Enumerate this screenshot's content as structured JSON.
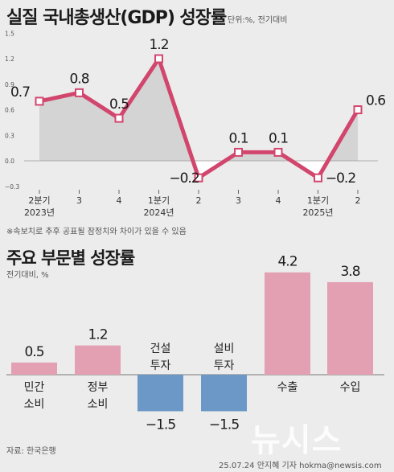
{
  "header": {
    "title": "실질 국내총생산(GDP) 성장률",
    "unit_note": "단위:%, 전기대비"
  },
  "note": "※속보치로 추후 공표될 잠정치와 차이가 있을 수 있음",
  "section2": {
    "title": "주요 부문별 성장률",
    "subtitle": "전기대비, %"
  },
  "footer": {
    "source": "자료: 한국은행",
    "credit": "25.07.24 안지혜 기자 hokma@newsis.com",
    "watermark": "뉴시스"
  },
  "colors": {
    "line": "#d2466e",
    "area": "#d4d4d4",
    "neg_area": "#ffffff",
    "bar_positive": "#e3a0b2",
    "bar_negative": "#6b98c6",
    "background": "#ececec"
  },
  "chart_data": [
    {
      "type": "line",
      "title": "실질 국내총생산(GDP) 성장률",
      "categories": [
        "2분기|2023년",
        "3",
        "4",
        "1분기|2024년",
        "2",
        "3",
        "4",
        "1분기|2025년",
        "2"
      ],
      "values": [
        0.7,
        0.8,
        0.5,
        1.2,
        -0.2,
        0.1,
        0.1,
        -0.2,
        0.6
      ],
      "value_labels": [
        "0.7",
        "0.8",
        "0.5",
        "1.2",
        "−0.2",
        "0.1",
        "0.1",
        "−0.2",
        "0.6"
      ],
      "y_ticks": [
        -0.3,
        0.0,
        0.3,
        0.6,
        0.9,
        1.2,
        1.5
      ],
      "y_tick_labels": [
        "−0.3",
        "0.0",
        "0.3",
        "0.6",
        "0.9",
        "1.2",
        "1.5"
      ],
      "ylim": [
        -0.3,
        1.5
      ],
      "grid": false
    },
    {
      "type": "bar",
      "title": "주요 부문별 성장률",
      "categories": [
        "민간|소비",
        "정부|소비",
        "건설|투자",
        "설비|투자",
        "수출",
        "수입"
      ],
      "values": [
        0.5,
        1.2,
        -1.5,
        -1.5,
        4.2,
        3.8
      ],
      "value_labels": [
        "0.5",
        "1.2",
        "−1.5",
        "−1.5",
        "4.2",
        "3.8"
      ],
      "ylim": [
        -1.5,
        4.2
      ]
    }
  ]
}
